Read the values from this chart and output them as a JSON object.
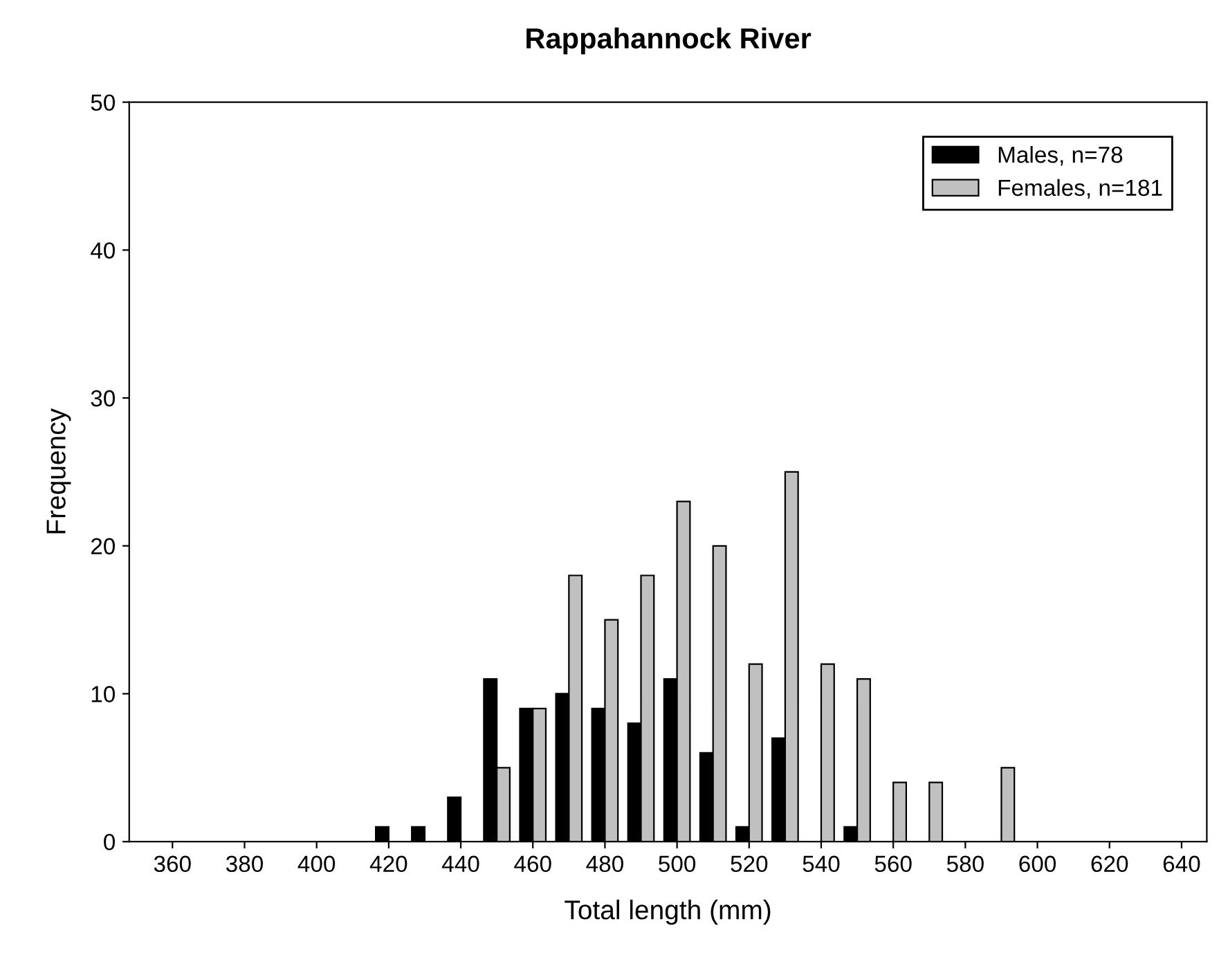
{
  "chart_data": {
    "type": "bar",
    "title": "Rappahannock River",
    "xlabel": "Total length (mm)",
    "ylabel": "Frequency",
    "x": [
      420,
      430,
      440,
      450,
      460,
      470,
      480,
      490,
      500,
      510,
      520,
      530,
      540,
      550,
      560,
      570,
      580,
      590
    ],
    "series": [
      {
        "name": "Males, n=78",
        "color": "#000000",
        "values": [
          1,
          1,
          3,
          11,
          9,
          10,
          9,
          8,
          11,
          6,
          1,
          7,
          null,
          1,
          null,
          null,
          null,
          null
        ]
      },
      {
        "name": "Females, n=181",
        "color": "#c0c0c0",
        "values": [
          null,
          null,
          null,
          5,
          9,
          18,
          15,
          18,
          23,
          20,
          12,
          25,
          12,
          11,
          4,
          4,
          null,
          5
        ]
      }
    ],
    "xlim": [
      348,
      647
    ],
    "xticks": [
      360,
      380,
      400,
      420,
      440,
      460,
      480,
      500,
      520,
      540,
      560,
      580,
      600,
      620,
      640
    ],
    "ylim": [
      0,
      50
    ],
    "yticks": [
      0,
      10,
      20,
      30,
      40,
      50
    ],
    "grid": false,
    "legend": "top right"
  }
}
